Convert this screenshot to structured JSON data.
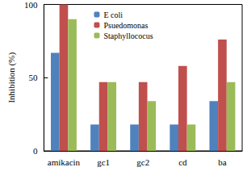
{
  "chart_data": {
    "type": "bar",
    "y_label": "Inhibition (%)",
    "categories": [
      "amikacin",
      "gc1",
      "gc2",
      "cd",
      "ba"
    ],
    "series": [
      {
        "name": "E coli",
        "color": "#4f81bd",
        "values": [
          67,
          18,
          18,
          18,
          34
        ]
      },
      {
        "name": "Psuedomonas",
        "color": "#c0504d",
        "values": [
          100,
          47,
          47,
          58,
          76
        ]
      },
      {
        "name": "Staphyllococus",
        "color": "#9bbb59",
        "values": [
          90,
          47,
          34,
          18,
          47
        ]
      }
    ],
    "ylim": [
      0,
      100
    ],
    "yticks": [
      0,
      50,
      100
    ],
    "grid": false,
    "legend": "top"
  }
}
